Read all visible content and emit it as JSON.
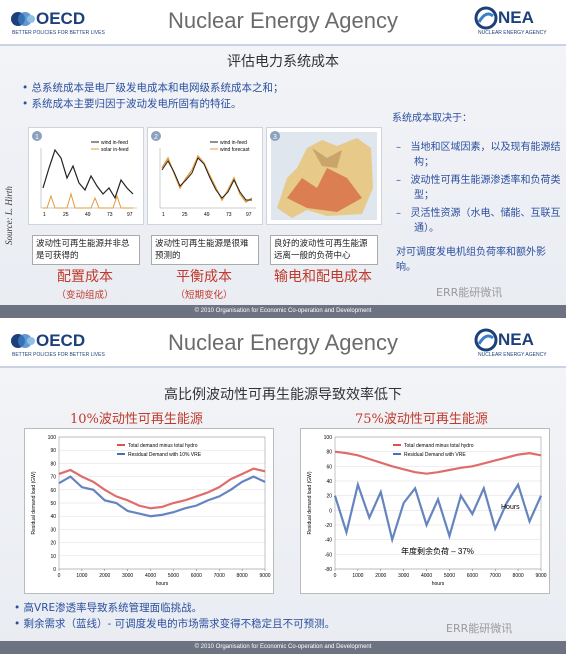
{
  "header": {
    "org": "OECD",
    "tagline": "BETTER POLICIES FOR BETTER LIVES",
    "title": "Nuclear Energy Agency",
    "agency": "NEA",
    "agency_full": "NUCLEAR ENERGY AGENCY"
  },
  "footer": "© 2010 Organisation for Economic Co-operation and Development",
  "watermark": "ERR能研微讯",
  "slides": [
    {
      "heading": "评估电力系统成本",
      "bullets": [
        "总系统成本是电厂级发电成本和电网级系统成本之和；",
        "系统成本主要归因于波动发电所固有的特征。"
      ],
      "source": "Source: L. Hirth",
      "panels": [
        {
          "number": 1,
          "legend": [
            "wind in-feed",
            "solar in-feed"
          ],
          "xticks": [
            "1",
            "25",
            "49",
            "73",
            "97"
          ],
          "caption": "波动性可再生能源并非总是可获得的",
          "cost": "配置成本",
          "note": "（变动组成）"
        },
        {
          "number": 2,
          "legend": [
            "wind in-feed",
            "wind forecast"
          ],
          "xticks": [
            "1",
            "25",
            "49",
            "73",
            "97"
          ],
          "caption": "波动性可再生能源是很难预测的",
          "cost": "平衡成本",
          "note": "（短期变化）"
        },
        {
          "number": 3,
          "caption": "良好的波动性可再生能源远离一般的负荷中心",
          "cost": "输电和配电成本"
        }
      ],
      "side": {
        "heading": "系统成本取决于：",
        "items": [
          "当地和区域因素，以及现有能源结构；",
          "波动性可再生能源渗透率和负荷类型；",
          "灵活性资源（水电、储能、互联互通）。"
        ],
        "closing": "对可调度发电机组负荷率和额外影响。"
      }
    },
    {
      "heading": "高比例波动性可再生能源导致效率低下",
      "bullets": [
        "高VRE渗透率导致系统管理面临挑战。",
        "剩余需求（蓝线）- 可调度发电的市场需求变得不稳定且不可预测。"
      ],
      "charts": [
        {
          "type": "line",
          "title": "10%波动性可再生能源",
          "xlabel": "hours",
          "ylabel": "Residual demand load (GW)",
          "xlim": [
            0,
            9000
          ],
          "xticks": [
            0,
            1000,
            2000,
            3000,
            4000,
            5000,
            6000,
            7000,
            8000,
            9000
          ],
          "ylim": [
            0,
            100
          ],
          "yticks": [
            0,
            10,
            20,
            30,
            40,
            50,
            60,
            70,
            80,
            90,
            100
          ],
          "grid": true,
          "x": [
            0,
            500,
            1000,
            1500,
            2000,
            2500,
            3000,
            3500,
            4000,
            4500,
            5000,
            5500,
            6000,
            6500,
            7000,
            7500,
            8000,
            8500,
            9000
          ],
          "series": [
            {
              "name": "Total demand minus total hydro",
              "color": "#d9534f",
              "values": [
                72,
                75,
                70,
                66,
                60,
                55,
                52,
                48,
                46,
                47,
                50,
                52,
                55,
                58,
                62,
                68,
                72,
                76,
                74
              ]
            },
            {
              "name": "Residual Demand with 10% VRE",
              "color": "#4a6fb5",
              "values": [
                65,
                70,
                62,
                60,
                52,
                50,
                44,
                42,
                40,
                41,
                43,
                46,
                48,
                52,
                55,
                60,
                66,
                70,
                66
              ]
            }
          ]
        },
        {
          "type": "line",
          "title": "75%波动性可再生能源",
          "xlabel": "hours",
          "ylabel": "Residual demand load (GW)",
          "xlim": [
            0,
            9000
          ],
          "xticks": [
            0,
            1000,
            2000,
            3000,
            4000,
            5000,
            6000,
            7000,
            8000,
            9000
          ],
          "ylim": [
            -80,
            100
          ],
          "yticks": [
            -80,
            -60,
            -40,
            -20,
            0,
            20,
            40,
            60,
            80,
            100
          ],
          "grid": true,
          "annotations": [
            "Hours",
            "年度剩余负荷 – 37%"
          ],
          "x": [
            0,
            500,
            1000,
            1500,
            2000,
            2500,
            3000,
            3500,
            4000,
            4500,
            5000,
            5500,
            6000,
            6500,
            7000,
            7500,
            8000,
            8500,
            9000
          ],
          "series": [
            {
              "name": "Total demand minus total hydro",
              "color": "#d9534f",
              "values": [
                80,
                78,
                75,
                70,
                65,
                60,
                56,
                52,
                50,
                52,
                55,
                58,
                60,
                64,
                68,
                72,
                76,
                78,
                75
              ]
            },
            {
              "name": "Residual Demand with VRE",
              "color": "#4a6fb5",
              "values": [
                20,
                -30,
                35,
                -10,
                25,
                -40,
                10,
                30,
                -20,
                15,
                -35,
                20,
                -5,
                30,
                -25,
                10,
                35,
                -15,
                20
              ]
            }
          ]
        }
      ]
    }
  ]
}
